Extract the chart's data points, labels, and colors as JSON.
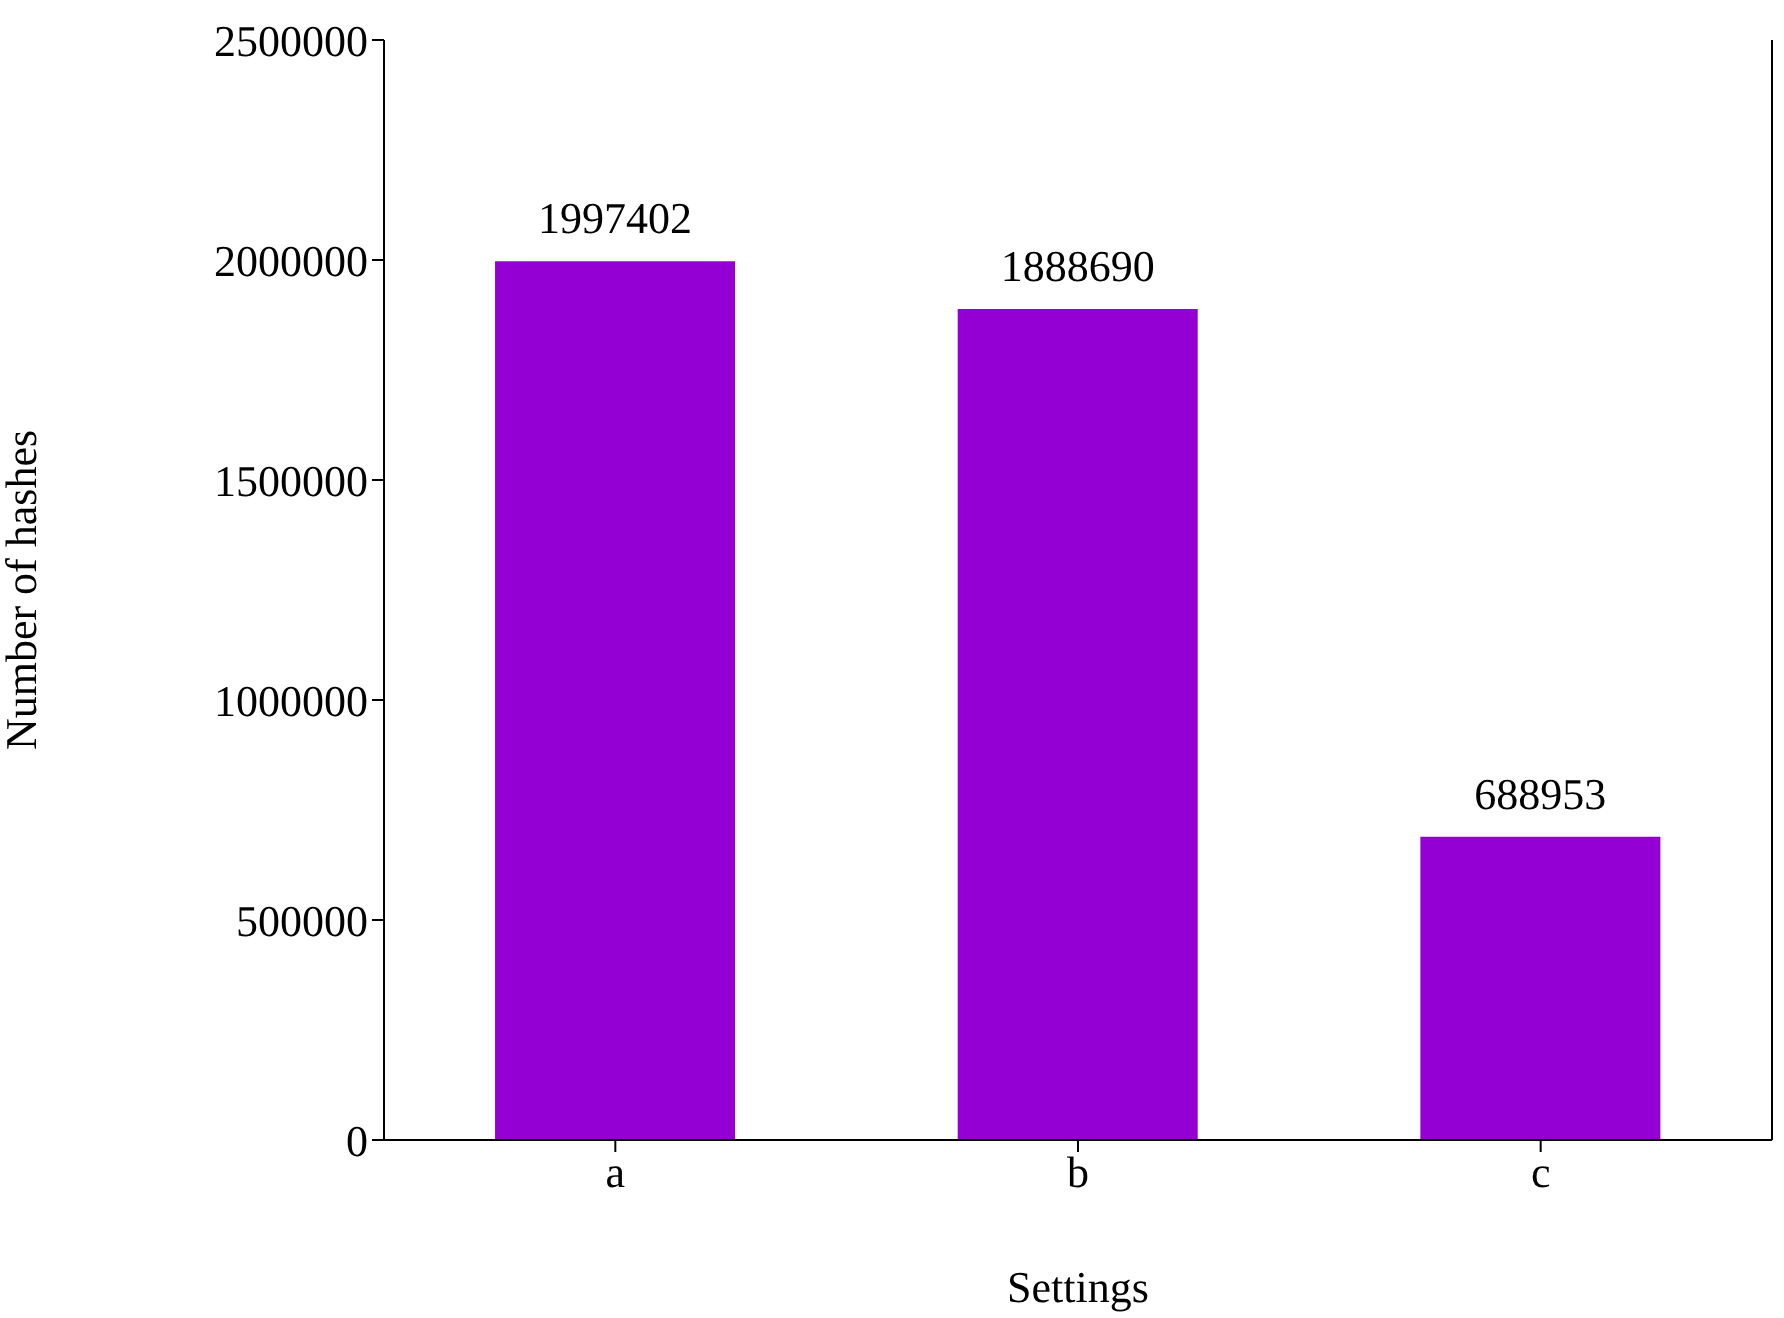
{
  "chart_data": {
    "type": "bar",
    "xlabel": "Settings",
    "ylabel": "Number of hashes",
    "categories": [
      "a",
      "b",
      "c"
    ],
    "values": [
      1997402,
      1888690,
      688953
    ],
    "color": "#9400d3",
    "ylim": [
      0,
      2500000
    ],
    "yticks": [
      0,
      500000,
      1000000,
      1500000,
      2000000,
      2500000
    ],
    "data_labels": true
  }
}
